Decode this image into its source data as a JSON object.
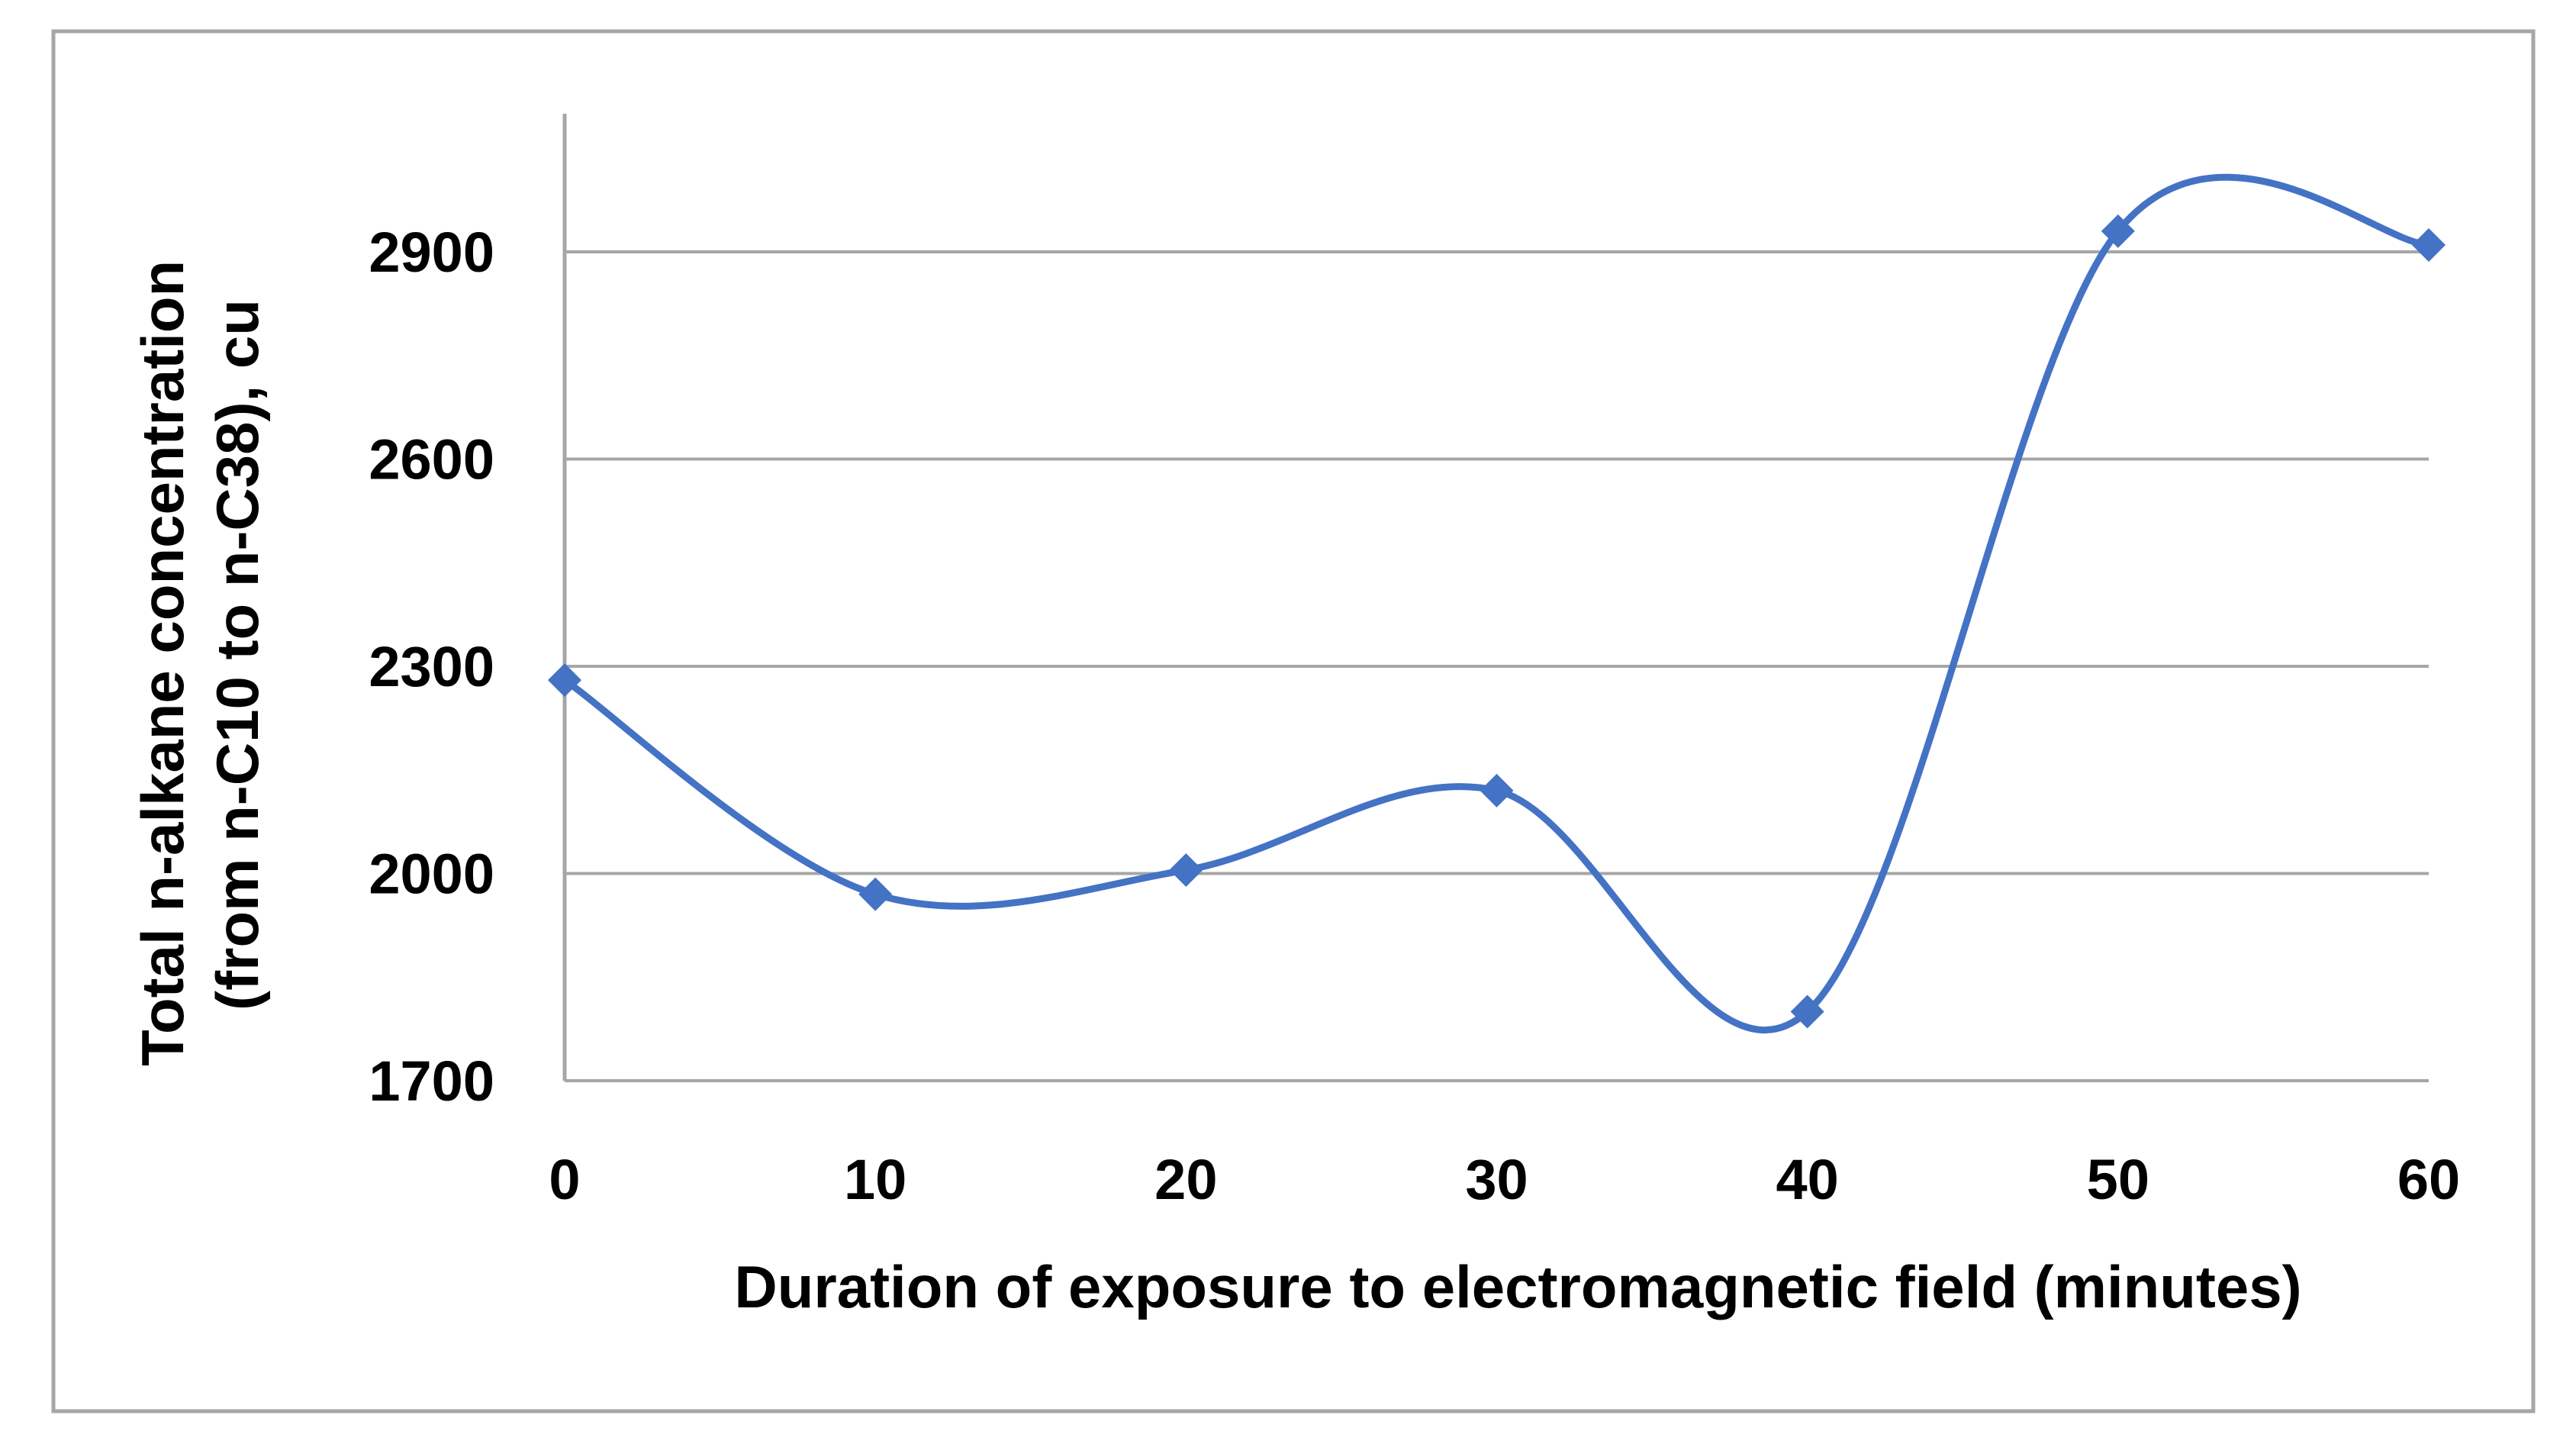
{
  "chart_data": {
    "type": "line",
    "smooth": true,
    "marker": "diamond",
    "x": [
      0,
      10,
      20,
      30,
      40,
      50,
      60
    ],
    "series": [
      {
        "values": [
          2280,
          1970,
          2005,
          2120,
          1800,
          2930,
          2910
        ],
        "color": "#4472C4"
      }
    ],
    "xlabel": "Duration of exposure to electromagnetic field (minutes)",
    "ylabel_lines": [
      "Total n-alkane concentration",
      "(from n-C10 to n-C38), cu"
    ],
    "xticks": [
      "0",
      "10",
      "20",
      "30",
      "40",
      "50",
      "60"
    ],
    "yticks": [
      "1700",
      "2000",
      "2300",
      "2600",
      "2900"
    ],
    "ytick_values": [
      1700,
      2000,
      2300,
      2600,
      2900
    ],
    "ylim": [
      1700,
      3100
    ],
    "xlim": [
      0,
      60
    ],
    "grid": "horizontal",
    "legend": "none",
    "colors": {
      "series": "#4472C4",
      "grid": "#A6A6A6",
      "frame": "#A6A6A6"
    }
  }
}
